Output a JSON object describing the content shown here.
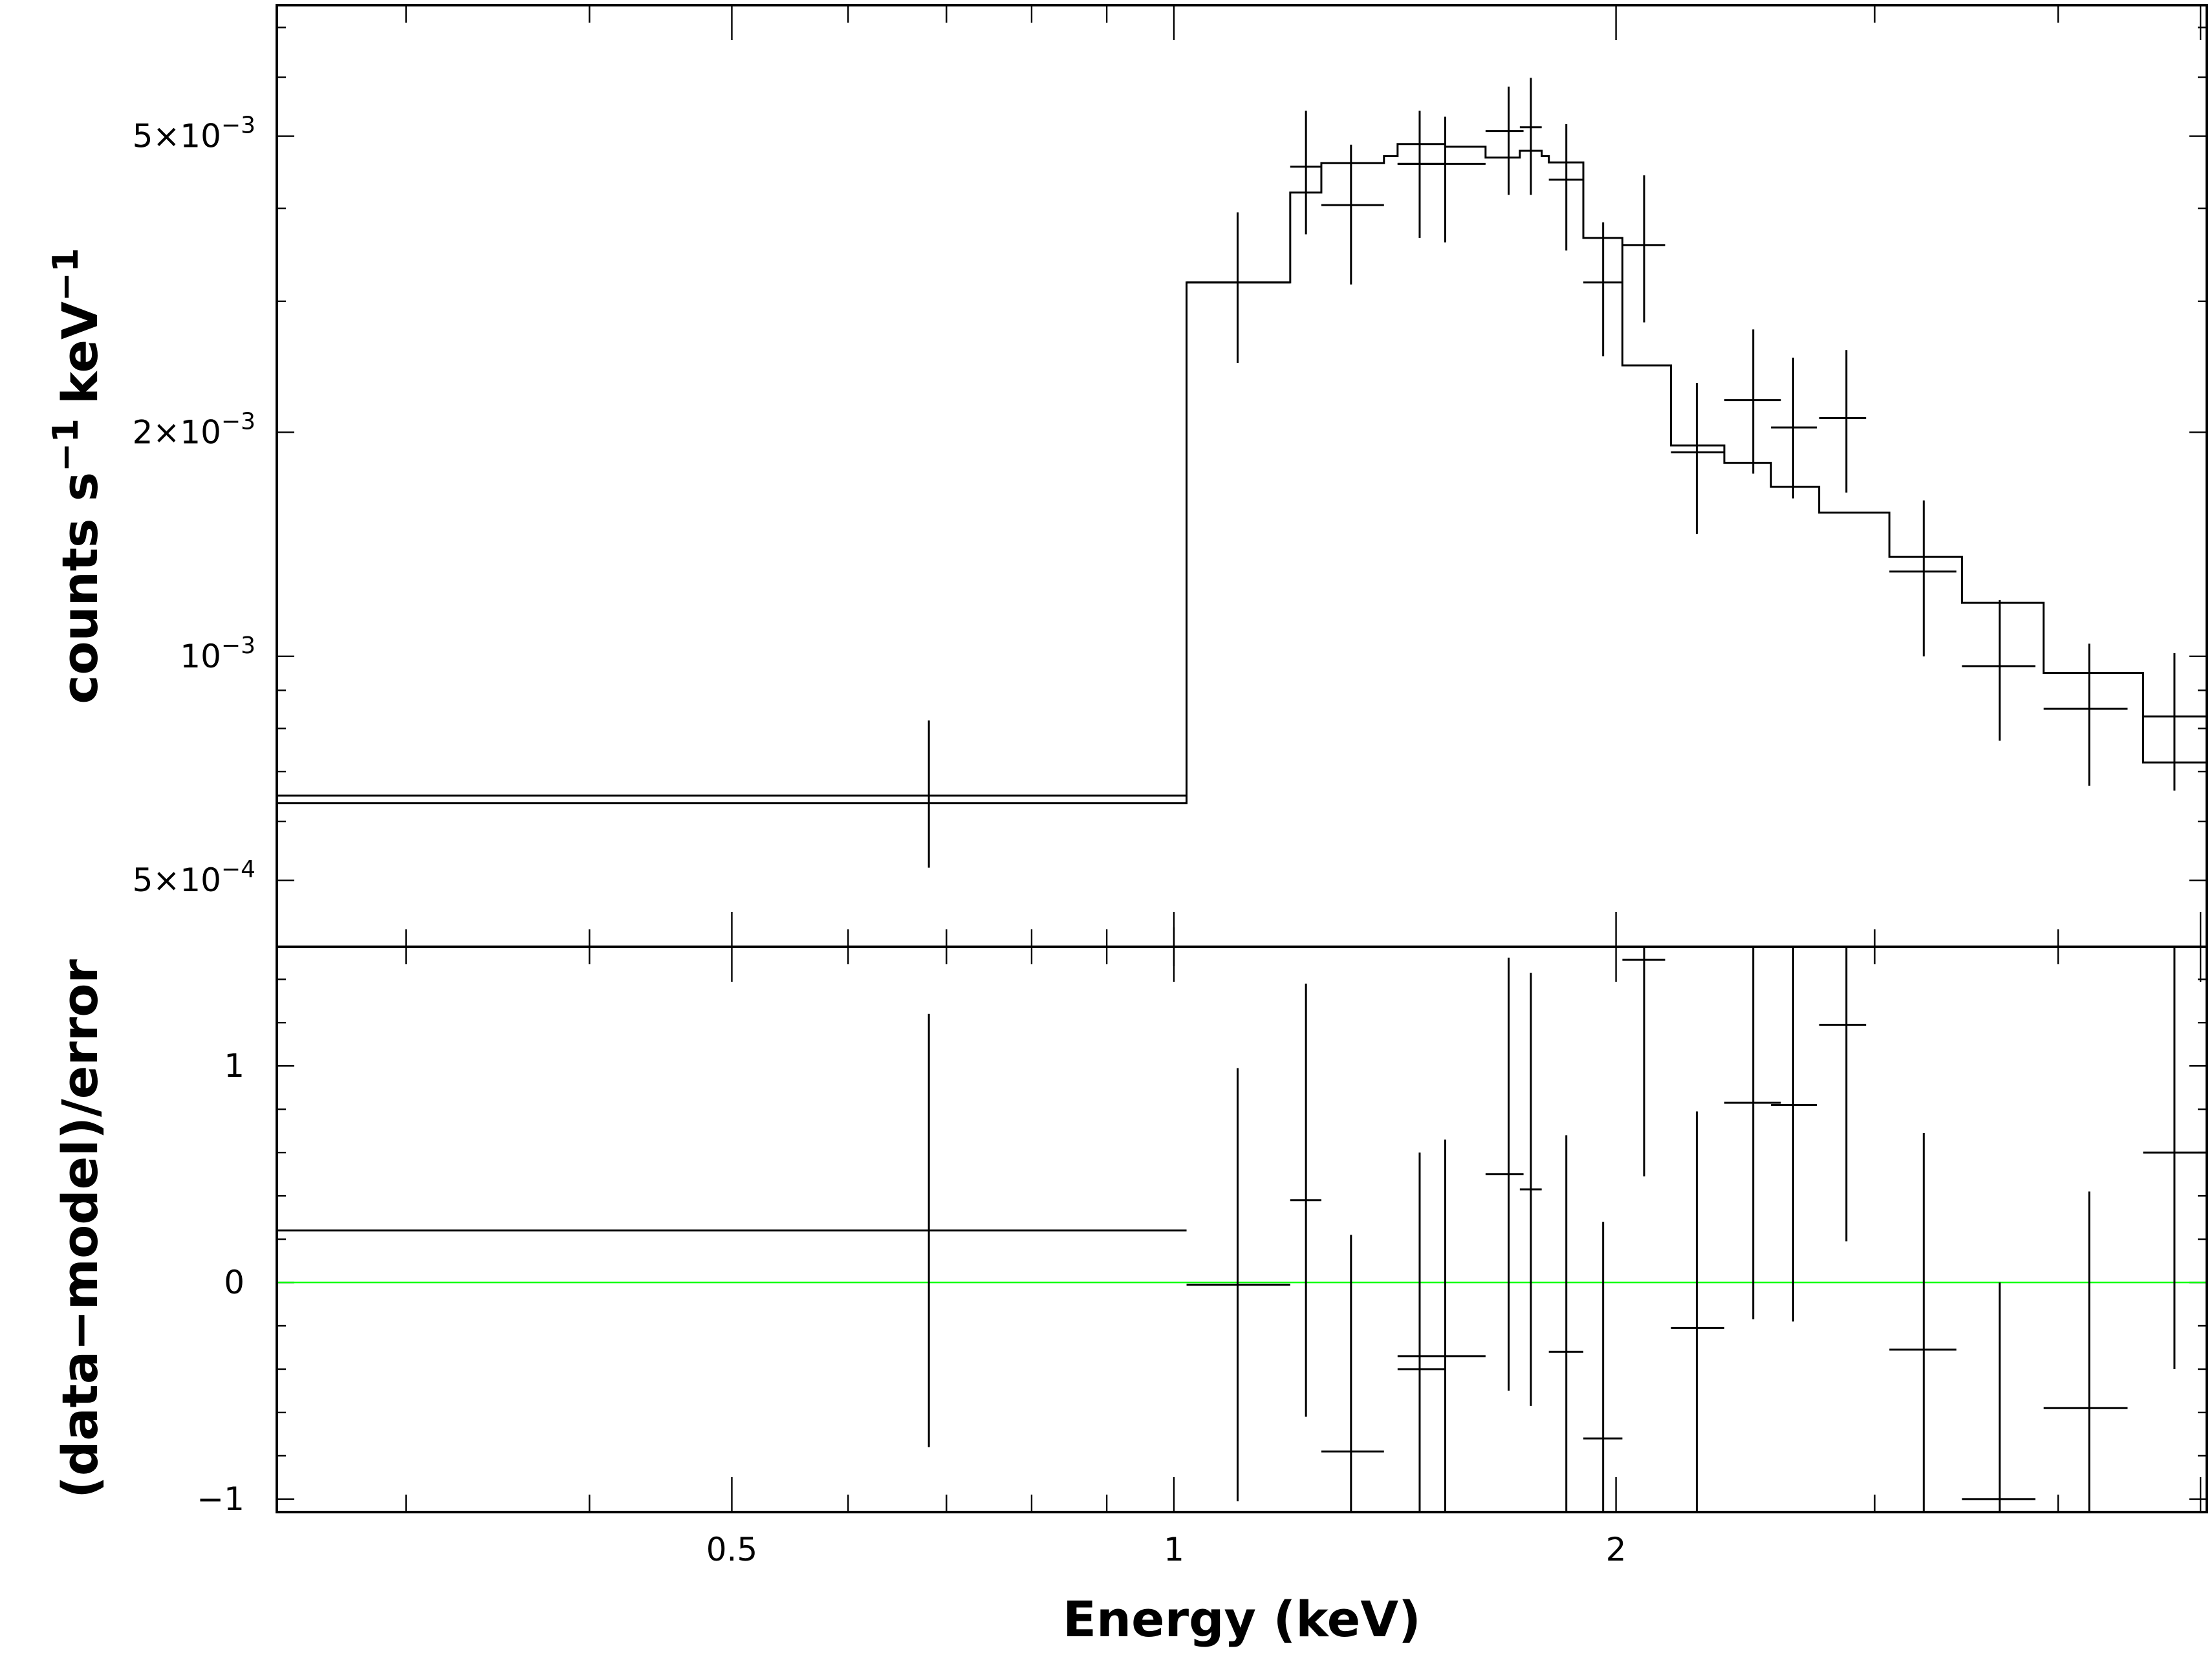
{
  "chart_data": [
    {
      "type": "step-errorbar",
      "panel": "spectrum",
      "title": "",
      "xlabel": "Energy (keV)",
      "ylabel": "counts s⁻¹ keV⁻¹",
      "ylabel_parts": {
        "counts": "counts s",
        "exp1": "−1",
        "kev": "keV",
        "exp2": "−1"
      },
      "x_scale": "log",
      "y_scale": "log",
      "xlim": [
        0.245,
        5.05
      ],
      "ylim": [
        0.000407,
        0.0075
      ],
      "x_tick_labels": [
        {
          "value": 0.5,
          "label": "0.5"
        },
        {
          "value": 1,
          "label": "1"
        },
        {
          "value": 2,
          "label": "2"
        }
      ],
      "y_tick_labels": [
        {
          "value": 0.0005,
          "base": "5×10",
          "exp": "−4"
        },
        {
          "value": 0.001,
          "base": "10",
          "exp": "−3"
        },
        {
          "value": 0.002,
          "base": "2×10",
          "exp": "−3"
        },
        {
          "value": 0.005,
          "base": "5×10",
          "exp": "−3"
        }
      ],
      "grid": false,
      "series": [
        {
          "kind": "data",
          "points": [
            {
              "x": 0.681,
              "xlo": 0.245,
              "xhi": 1.02,
              "y": 0.00065,
              "ylo": 0.00052,
              "yhi": 0.00082
            },
            {
              "x": 1.105,
              "xlo": 1.02,
              "xhi": 1.2,
              "y": 0.00318,
              "ylo": 0.00248,
              "yhi": 0.00395
            },
            {
              "x": 1.23,
              "xlo": 1.2,
              "xhi": 1.26,
              "y": 0.00455,
              "ylo": 0.00369,
              "yhi": 0.00541
            },
            {
              "x": 1.32,
              "xlo": 1.26,
              "xhi": 1.39,
              "y": 0.00404,
              "ylo": 0.00316,
              "yhi": 0.00487
            },
            {
              "x": 1.47,
              "xlo": 1.42,
              "xhi": 1.53,
              "y": 0.00459,
              "ylo": 0.00365,
              "yhi": 0.00541
            },
            {
              "x": 1.53,
              "xlo": 1.42,
              "xhi": 1.63,
              "y": 0.00459,
              "ylo": 0.0036,
              "yhi": 0.00531
            },
            {
              "x": 1.69,
              "xlo": 1.63,
              "xhi": 1.73,
              "y": 0.00508,
              "ylo": 0.00417,
              "yhi": 0.00583
            },
            {
              "x": 1.75,
              "xlo": 1.72,
              "xhi": 1.78,
              "y": 0.00514,
              "ylo": 0.00417,
              "yhi": 0.00599
            },
            {
              "x": 1.85,
              "xlo": 1.8,
              "xhi": 1.9,
              "y": 0.00437,
              "ylo": 0.00351,
              "yhi": 0.00519
            },
            {
              "x": 1.96,
              "xlo": 1.9,
              "xhi": 2.02,
              "y": 0.00318,
              "ylo": 0.00253,
              "yhi": 0.00383
            },
            {
              "x": 2.09,
              "xlo": 2.02,
              "xhi": 2.16,
              "y": 0.00357,
              "ylo": 0.00281,
              "yhi": 0.00443
            },
            {
              "x": 2.27,
              "xlo": 2.18,
              "xhi": 2.37,
              "y": 0.00188,
              "ylo": 0.00146,
              "yhi": 0.00233
            },
            {
              "x": 2.48,
              "xlo": 2.37,
              "xhi": 2.59,
              "y": 0.00221,
              "ylo": 0.00176,
              "yhi": 0.00275
            },
            {
              "x": 2.64,
              "xlo": 2.55,
              "xhi": 2.74,
              "y": 0.00203,
              "ylo": 0.00163,
              "yhi": 0.00252
            },
            {
              "x": 2.87,
              "xlo": 2.75,
              "xhi": 2.96,
              "y": 0.00209,
              "ylo": 0.00166,
              "yhi": 0.00258
            },
            {
              "x": 3.24,
              "xlo": 3.07,
              "xhi": 3.41,
              "y": 0.0013,
              "ylo": 0.001,
              "yhi": 0.00162
            },
            {
              "x": 3.65,
              "xlo": 3.44,
              "xhi": 3.86,
              "y": 0.00097,
              "ylo": 0.00077,
              "yhi": 0.00119
            },
            {
              "x": 4.2,
              "xlo": 3.91,
              "xhi": 4.46,
              "y": 0.00085,
              "ylo": 0.00067,
              "yhi": 0.00104
            },
            {
              "x": 4.8,
              "xlo": 4.57,
              "xhi": 5.05,
              "y": 0.00083,
              "ylo": 0.00066,
              "yhi": 0.00101
            }
          ]
        },
        {
          "kind": "model",
          "steps": [
            {
              "xlo": 0.245,
              "xhi": 1.02,
              "y": 0.000635
            },
            {
              "xlo": 1.02,
              "xhi": 1.2,
              "y": 0.00318
            },
            {
              "xlo": 1.2,
              "xhi": 1.26,
              "y": 0.0042
            },
            {
              "xlo": 1.26,
              "xhi": 1.39,
              "y": 0.0046
            },
            {
              "xlo": 1.39,
              "xhi": 1.42,
              "y": 0.0047
            },
            {
              "xlo": 1.42,
              "xhi": 1.53,
              "y": 0.00488
            },
            {
              "xlo": 1.53,
              "xhi": 1.63,
              "y": 0.00484
            },
            {
              "xlo": 1.63,
              "xhi": 1.72,
              "y": 0.00468
            },
            {
              "xlo": 1.72,
              "xhi": 1.78,
              "y": 0.00478
            },
            {
              "xlo": 1.78,
              "xhi": 1.8,
              "y": 0.0047
            },
            {
              "xlo": 1.8,
              "xhi": 1.9,
              "y": 0.00461
            },
            {
              "xlo": 1.9,
              "xhi": 2.02,
              "y": 0.00365
            },
            {
              "xlo": 2.02,
              "xhi": 2.18,
              "y": 0.00246
            },
            {
              "xlo": 2.18,
              "xhi": 2.37,
              "y": 0.00192
            },
            {
              "xlo": 2.37,
              "xhi": 2.55,
              "y": 0.00182
            },
            {
              "xlo": 2.55,
              "xhi": 2.75,
              "y": 0.00169
            },
            {
              "xlo": 2.75,
              "xhi": 3.07,
              "y": 0.00156
            },
            {
              "xlo": 3.07,
              "xhi": 3.44,
              "y": 0.00136
            },
            {
              "xlo": 3.44,
              "xhi": 3.91,
              "y": 0.00118
            },
            {
              "xlo": 3.91,
              "xhi": 4.57,
              "y": 0.00095
            },
            {
              "xlo": 4.57,
              "xhi": 5.05,
              "y": 0.00072
            }
          ]
        }
      ]
    },
    {
      "type": "errorbar",
      "panel": "residuals",
      "title": "",
      "xlabel": "Energy (keV)",
      "ylabel": "(data−model)/error",
      "x_scale": "log",
      "y_scale": "linear",
      "xlim": [
        0.245,
        5.05
      ],
      "ylim": [
        -1.06,
        1.55
      ],
      "y_tick_labels": [
        {
          "value": -1,
          "label": "−1"
        },
        {
          "value": 0,
          "label": "0"
        },
        {
          "value": 1,
          "label": "1"
        }
      ],
      "zero_line_color": "#00ff00",
      "grid": false,
      "points": [
        {
          "x": 0.681,
          "xlo": 0.245,
          "xhi": 1.02,
          "y": 0.24,
          "ylo": -0.76,
          "yhi": 1.24
        },
        {
          "x": 1.105,
          "xlo": 1.02,
          "xhi": 1.2,
          "y": -0.01,
          "ylo": -1.01,
          "yhi": 0.99
        },
        {
          "x": 1.23,
          "xlo": 1.2,
          "xhi": 1.26,
          "y": 0.38,
          "ylo": -0.62,
          "yhi": 1.38
        },
        {
          "x": 1.32,
          "xlo": 1.26,
          "xhi": 1.39,
          "y": -0.78,
          "ylo": -1.06,
          "yhi": 0.22
        },
        {
          "x": 1.47,
          "xlo": 1.42,
          "xhi": 1.53,
          "y": -0.4,
          "ylo": -1.06,
          "yhi": 0.6
        },
        {
          "x": 1.53,
          "xlo": 1.42,
          "xhi": 1.63,
          "y": -0.34,
          "ylo": -1.06,
          "yhi": 0.66
        },
        {
          "x": 1.69,
          "xlo": 1.63,
          "xhi": 1.73,
          "y": 0.5,
          "ylo": -0.5,
          "yhi": 1.5
        },
        {
          "x": 1.75,
          "xlo": 1.72,
          "xhi": 1.78,
          "y": 0.43,
          "ylo": -0.57,
          "yhi": 1.43
        },
        {
          "x": 1.85,
          "xlo": 1.8,
          "xhi": 1.9,
          "y": -0.32,
          "ylo": -1.06,
          "yhi": 0.68
        },
        {
          "x": 1.96,
          "xlo": 1.9,
          "xhi": 2.02,
          "y": -0.72,
          "ylo": -1.06,
          "yhi": 0.28
        },
        {
          "x": 2.09,
          "xlo": 2.02,
          "xhi": 2.16,
          "y": 1.49,
          "ylo": 0.49,
          "yhi": 1.55
        },
        {
          "x": 2.27,
          "xlo": 2.18,
          "xhi": 2.37,
          "y": -0.21,
          "ylo": -1.06,
          "yhi": 0.79
        },
        {
          "x": 2.48,
          "xlo": 2.37,
          "xhi": 2.59,
          "y": 0.83,
          "ylo": -0.17,
          "yhi": 1.55
        },
        {
          "x": 2.64,
          "xlo": 2.55,
          "xhi": 2.74,
          "y": 0.82,
          "ylo": -0.18,
          "yhi": 1.55
        },
        {
          "x": 2.87,
          "xlo": 2.75,
          "xhi": 2.96,
          "y": 1.19,
          "ylo": 0.19,
          "yhi": 1.55
        },
        {
          "x": 3.24,
          "xlo": 3.07,
          "xhi": 3.41,
          "y": -0.31,
          "ylo": -1.06,
          "yhi": 0.69
        },
        {
          "x": 3.65,
          "xlo": 3.44,
          "xhi": 3.86,
          "y": -1.0,
          "ylo": -1.06,
          "yhi": 0.0
        },
        {
          "x": 4.2,
          "xlo": 3.91,
          "xhi": 4.46,
          "y": -0.58,
          "ylo": -1.06,
          "yhi": 0.42
        },
        {
          "x": 4.8,
          "xlo": 4.57,
          "xhi": 5.05,
          "y": 0.6,
          "ylo": -0.4,
          "yhi": 1.55
        }
      ]
    }
  ]
}
